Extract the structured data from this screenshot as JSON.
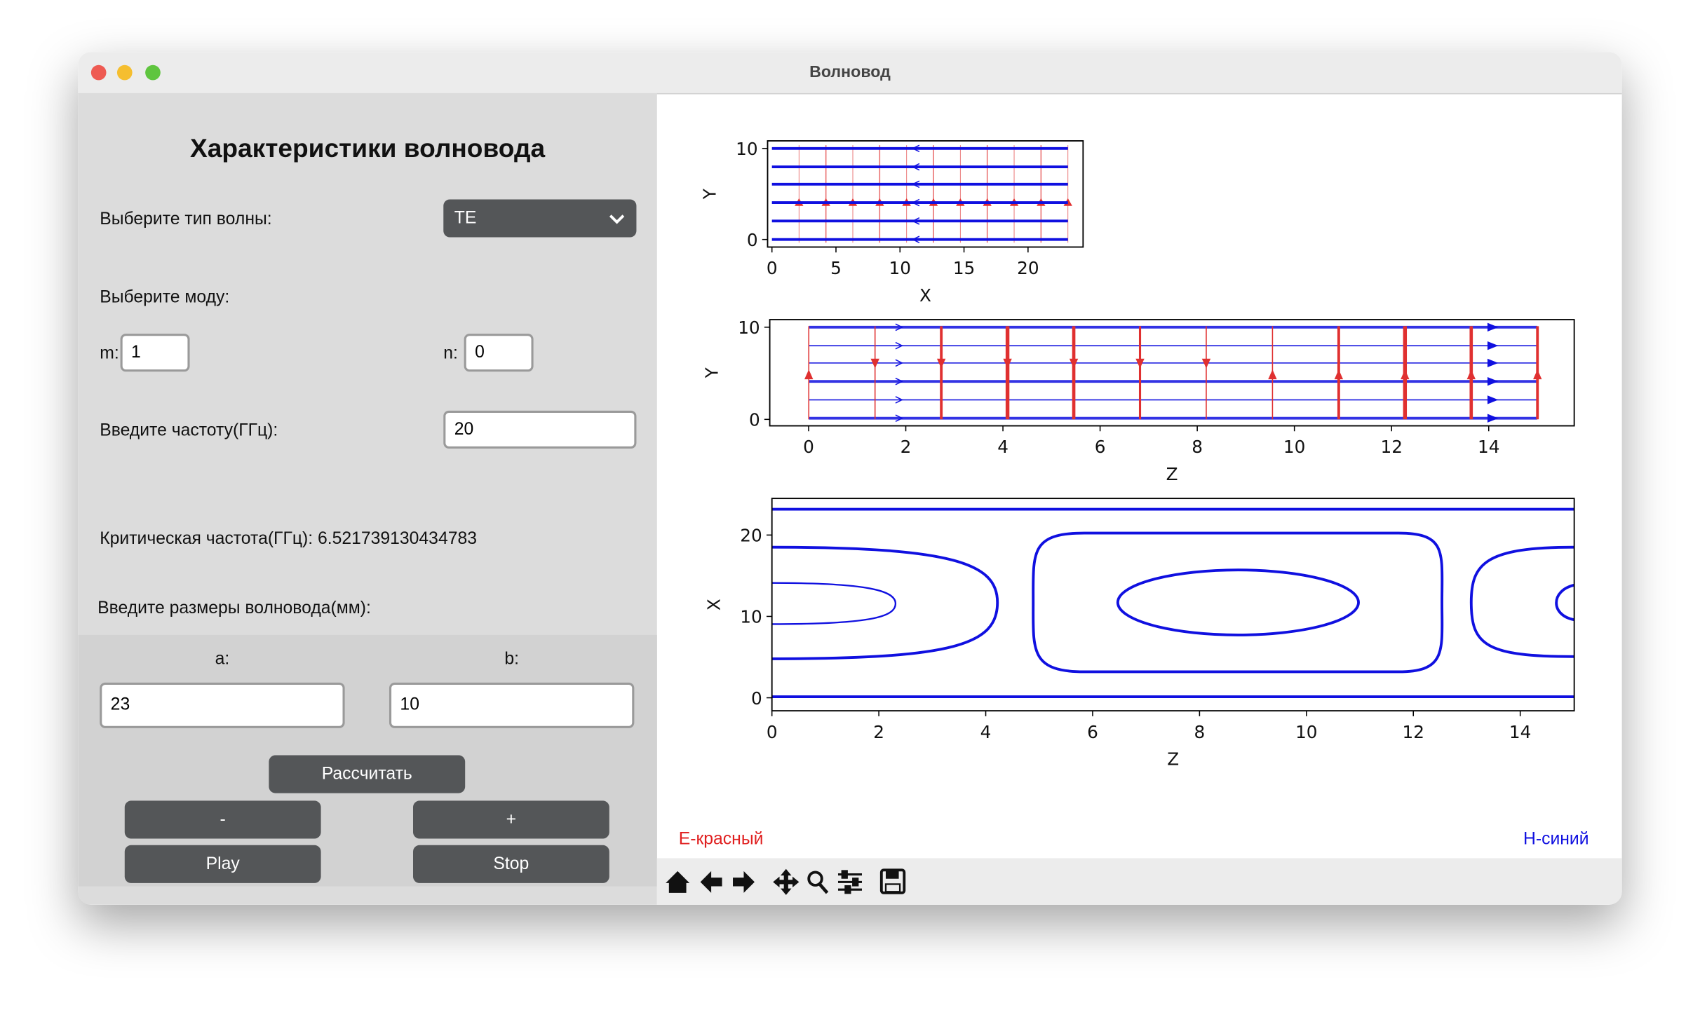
{
  "window": {
    "title": "Волновод"
  },
  "form": {
    "heading": "Характеристики волновода",
    "wave_type_label": "Выберите тип волны:",
    "wave_type": "TE",
    "mode_label": "Выберите моду:",
    "m_label": "m:",
    "m": "1",
    "n_label": "n:",
    "n": "0",
    "freq_label": "Введите частоту(ГГц):",
    "freq": "20",
    "critical": "Критическая частота(ГГц): 6.521739130434783",
    "size_label": "Введите размеры волновода(мм):",
    "a_label": "a:",
    "a": "23",
    "b_label": "b:",
    "b": "10",
    "buttons": [
      "Рассчитать",
      "-",
      "+",
      "Play",
      "Stop"
    ]
  },
  "plots": [
    {
      "xlabel": "X",
      "ylabel": "Y",
      "xlim": [
        -0.34,
        24.3
      ],
      "ylim": [
        -0.83,
        10.83
      ],
      "xticks": [
        0,
        5,
        10,
        15,
        20
      ],
      "yticks": [
        0,
        10
      ]
    },
    {
      "xlabel": "Z",
      "ylabel": "Y",
      "xlim": [
        -0.8,
        15.76
      ],
      "ylim": [
        -0.7,
        10.82
      ],
      "xticks": [
        0,
        2,
        4,
        6,
        8,
        10,
        12,
        14
      ],
      "yticks": [
        0,
        10
      ]
    },
    {
      "xlabel": "Z",
      "ylabel": "X",
      "xlim": [
        0,
        15.01
      ],
      "ylim": [
        -1.6,
        24.5
      ],
      "xticks": [
        0,
        2,
        4,
        6,
        8,
        10,
        12,
        14
      ],
      "yticks": [
        0,
        10,
        20
      ]
    }
  ],
  "legend": {
    "e": "Е-красный",
    "h": "Н-синий"
  }
}
